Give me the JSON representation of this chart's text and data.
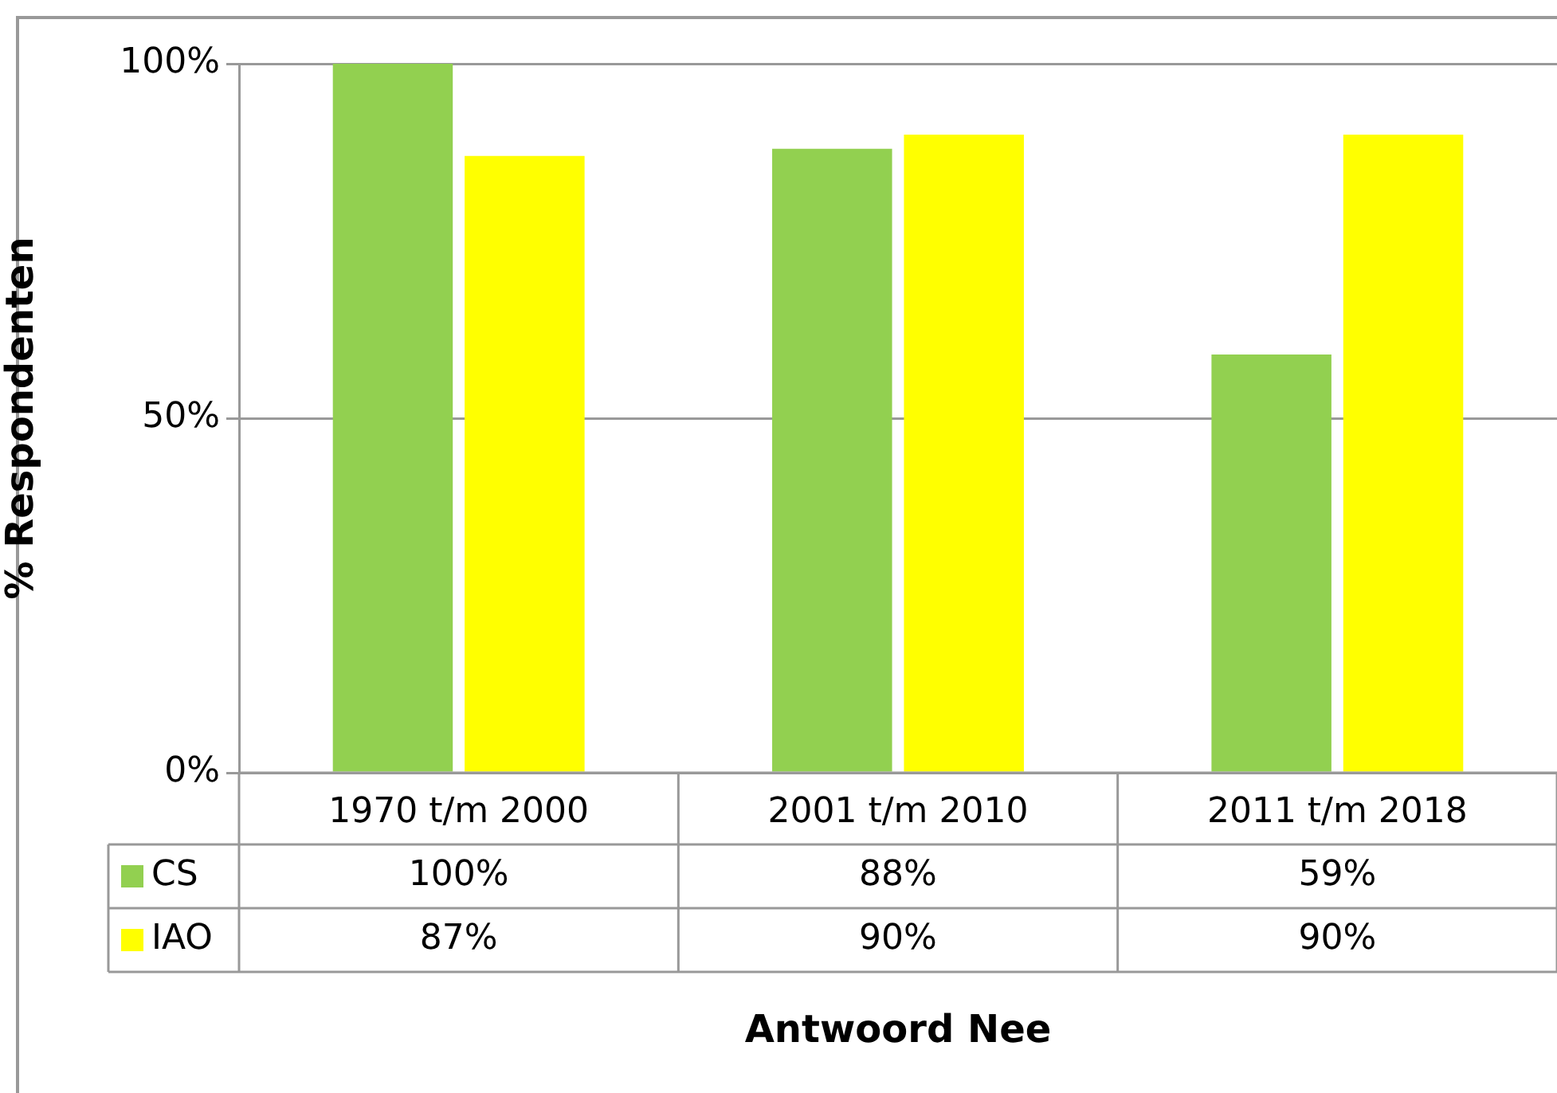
{
  "chart_data": {
    "type": "bar",
    "xlabel": "Antwoord Nee",
    "ylabel": "% Respondenten",
    "categories": [
      "1970 t/m 2000",
      "2001 t/m 2010",
      "2011 t/m 2018"
    ],
    "series": [
      {
        "name": "CS",
        "color": "#92d050",
        "values": [
          100,
          88,
          59
        ],
        "value_labels": [
          "100%",
          "88%",
          "59%"
        ]
      },
      {
        "name": "IAO",
        "color": "#ffff00",
        "values": [
          87,
          90,
          90
        ],
        "value_labels": [
          "87%",
          "90%",
          "90%"
        ]
      }
    ],
    "ylim": [
      0,
      100
    ],
    "yticks": [
      {
        "value": 0,
        "label": "0%"
      },
      {
        "value": 50,
        "label": "50%"
      },
      {
        "value": 100,
        "label": "100%"
      }
    ],
    "grid": "y",
    "legend": "bottom left"
  }
}
